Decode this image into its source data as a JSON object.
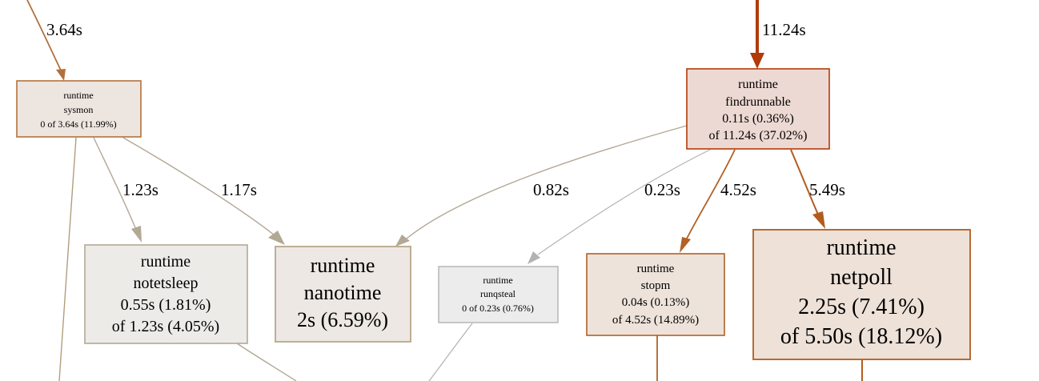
{
  "nodes": {
    "sysmon": {
      "lines": [
        "runtime",
        "sysmon",
        "0 of 3.64s (11.99%)"
      ],
      "fill": "#ede5e0",
      "stroke": "#b2713c"
    },
    "findrunnable": {
      "lines": [
        "runtime",
        "findrunnable",
        "0.11s (0.36%)",
        "of 11.24s (37.02%)"
      ],
      "fill": "#edd9d3",
      "stroke": "#b23a0a"
    },
    "notetsleep": {
      "lines": [
        "runtime",
        "notetsleep",
        "0.55s (1.81%)",
        "of 1.23s (4.05%)"
      ],
      "fill": "#edebe8",
      "stroke": "#b2a894"
    },
    "nanotime": {
      "lines": [
        "runtime",
        "nanotime",
        "2s (6.59%)"
      ],
      "fill": "#ede8e3",
      "stroke": "#b29d7f"
    },
    "runqsteal": {
      "lines": [
        "runtime",
        "runqsteal",
        "0 of 0.23s (0.76%)"
      ],
      "fill": "#ececec",
      "stroke": "#b2b2b2"
    },
    "stopm": {
      "lines": [
        "runtime",
        "stopm",
        "0.04s (0.13%)",
        "of 4.52s (14.89%)"
      ],
      "fill": "#ede3db",
      "stroke": "#b26025"
    },
    "netpoll": {
      "lines": [
        "runtime",
        "netpoll",
        "2.25s (7.41%)",
        "of 5.50s (18.12%)"
      ],
      "fill": "#ede1d8",
      "stroke": "#b25c1e"
    }
  },
  "edges": {
    "to_sysmon": {
      "label": "3.64s",
      "color": "#b2713c"
    },
    "to_findrunnable": {
      "label": "11.24s",
      "color": "#b23a0a"
    },
    "sysmon_notetsleep": {
      "label": "1.23s",
      "color": "#b2a894"
    },
    "sysmon_nanotime": {
      "label": "1.17s",
      "color": "#b2a894"
    },
    "findrunnable_nanotime": {
      "label": "0.82s",
      "color": "#b2a894"
    },
    "findrunnable_runqsteal": {
      "label": "0.23s",
      "color": "#b2b2b2"
    },
    "findrunnable_stopm": {
      "label": "4.52s",
      "color": "#b26025"
    },
    "findrunnable_netpoll": {
      "label": "5.49s",
      "color": "#b25c1e"
    }
  }
}
